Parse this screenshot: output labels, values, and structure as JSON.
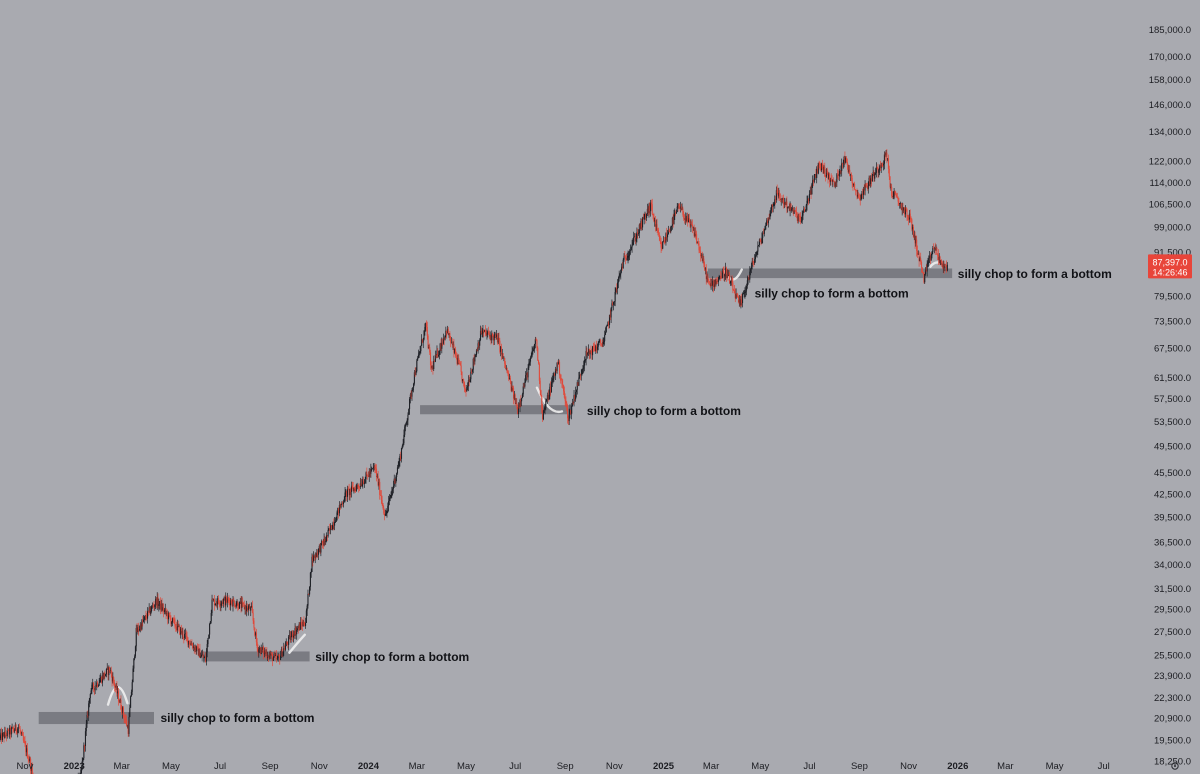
{
  "chart_data": {
    "type": "candlestick",
    "title": "",
    "xlabel": "",
    "ylabel": "",
    "y_scale": "log",
    "ylim": [
      17500,
      195000
    ],
    "x_range": [
      "2022-10-01",
      "2026-08-15"
    ],
    "grid": false,
    "colors": {
      "background": "#a9aab0",
      "up": "#1e2026",
      "down": "#e0493a",
      "zone": "#6d6e74",
      "price_tag": "#e8453a",
      "text": "#1c1d22",
      "scribble": "#f3f3f3"
    },
    "y_ticks": [
      {
        "value": 185000,
        "label": "185,000.0"
      },
      {
        "value": 170000,
        "label": "170,000.0"
      },
      {
        "value": 158000,
        "label": "158,000.0"
      },
      {
        "value": 146000,
        "label": "146,000.0"
      },
      {
        "value": 134000,
        "label": "134,000.0"
      },
      {
        "value": 122000,
        "label": "122,000.0"
      },
      {
        "value": 114000,
        "label": "114,000.0"
      },
      {
        "value": 106500,
        "label": "106,500.0"
      },
      {
        "value": 99000,
        "label": "99,000.0"
      },
      {
        "value": 91500,
        "label": "91,500.0"
      },
      {
        "value": 79500,
        "label": "79,500.0"
      },
      {
        "value": 73500,
        "label": "73,500.0"
      },
      {
        "value": 67500,
        "label": "67,500.0"
      },
      {
        "value": 61500,
        "label": "61,500.0"
      },
      {
        "value": 57500,
        "label": "57,500.0"
      },
      {
        "value": 53500,
        "label": "53,500.0"
      },
      {
        "value": 49500,
        "label": "49,500.0"
      },
      {
        "value": 45500,
        "label": "45,500.0"
      },
      {
        "value": 42500,
        "label": "42,500.0"
      },
      {
        "value": 39500,
        "label": "39,500.0"
      },
      {
        "value": 36500,
        "label": "36,500.0"
      },
      {
        "value": 34000,
        "label": "34,000.0"
      },
      {
        "value": 31500,
        "label": "31,500.0"
      },
      {
        "value": 29500,
        "label": "29,500.0"
      },
      {
        "value": 27500,
        "label": "27,500.0"
      },
      {
        "value": 25500,
        "label": "25,500.0"
      },
      {
        "value": 23900,
        "label": "23,900.0"
      },
      {
        "value": 22300,
        "label": "22,300.0"
      },
      {
        "value": 20900,
        "label": "20,900.0"
      },
      {
        "value": 19500,
        "label": "19,500.0"
      },
      {
        "value": 18250,
        "label": "18,250.0"
      }
    ],
    "x_ticks": [
      {
        "date": "2022-11-01",
        "label": "Nov",
        "bold": false
      },
      {
        "date": "2023-01-01",
        "label": "2023",
        "bold": true
      },
      {
        "date": "2023-03-01",
        "label": "Mar",
        "bold": false
      },
      {
        "date": "2023-05-01",
        "label": "May",
        "bold": false
      },
      {
        "date": "2023-07-01",
        "label": "Jul",
        "bold": false
      },
      {
        "date": "2023-09-01",
        "label": "Sep",
        "bold": false
      },
      {
        "date": "2023-11-01",
        "label": "Nov",
        "bold": false
      },
      {
        "date": "2024-01-01",
        "label": "2024",
        "bold": true
      },
      {
        "date": "2024-03-01",
        "label": "Mar",
        "bold": false
      },
      {
        "date": "2024-05-01",
        "label": "May",
        "bold": false
      },
      {
        "date": "2024-07-01",
        "label": "Jul",
        "bold": false
      },
      {
        "date": "2024-09-01",
        "label": "Sep",
        "bold": false
      },
      {
        "date": "2024-11-01",
        "label": "Nov",
        "bold": false
      },
      {
        "date": "2025-01-01",
        "label": "2025",
        "bold": true
      },
      {
        "date": "2025-03-01",
        "label": "Mar",
        "bold": false
      },
      {
        "date": "2025-05-01",
        "label": "May",
        "bold": false
      },
      {
        "date": "2025-07-01",
        "label": "Jul",
        "bold": false
      },
      {
        "date": "2025-09-01",
        "label": "Sep",
        "bold": false
      },
      {
        "date": "2025-11-01",
        "label": "Nov",
        "bold": false
      },
      {
        "date": "2026-01-01",
        "label": "2026",
        "bold": true
      },
      {
        "date": "2026-03-01",
        "label": "Mar",
        "bold": false
      },
      {
        "date": "2026-05-01",
        "label": "May",
        "bold": false
      },
      {
        "date": "2026-07-01",
        "label": "Jul",
        "bold": false
      }
    ],
    "price_marker": {
      "value": 87397,
      "price_label": "87,397.0",
      "countdown_label": "14:26:46"
    },
    "zones": [
      {
        "start": "2022-11-18",
        "end": "2023-04-10",
        "low": 20500,
        "high": 21300
      },
      {
        "start": "2023-06-08",
        "end": "2023-10-20",
        "low": 25000,
        "high": 25800
      },
      {
        "start": "2024-03-05",
        "end": "2024-09-10",
        "low": 54700,
        "high": 56300
      },
      {
        "start": "2025-02-25",
        "end": "2025-12-25",
        "low": 84200,
        "high": 86800
      }
    ],
    "annotations": [
      {
        "text": "silly chop to form a bottom",
        "date": "2023-04-18",
        "value": 20900
      },
      {
        "text": "silly chop to form a bottom",
        "date": "2023-10-27",
        "value": 25350
      },
      {
        "text": "silly chop to form a bottom",
        "date": "2024-09-28",
        "value": 55300
      },
      {
        "text": "silly chop to form a bottom",
        "date": "2026-01-01",
        "value": 85300
      },
      {
        "text": "silly chop to form a bottom",
        "date": "2025-04-24",
        "value": 80200
      }
    ],
    "price_path": [
      [
        "2022-10-01",
        19600
      ],
      [
        "2022-10-25",
        20300
      ],
      [
        "2022-11-08",
        18200
      ],
      [
        "2022-11-15",
        16500
      ],
      [
        "2022-12-15",
        16900
      ],
      [
        "2022-12-31",
        16550
      ],
      [
        "2023-01-10",
        17300
      ],
      [
        "2023-01-22",
        22800
      ],
      [
        "2023-02-15",
        24400
      ],
      [
        "2023-03-10",
        20150
      ],
      [
        "2023-03-20",
        27400
      ],
      [
        "2023-04-14",
        30300
      ],
      [
        "2023-05-01",
        28600
      ],
      [
        "2023-05-20",
        27000
      ],
      [
        "2023-06-14",
        25100
      ],
      [
        "2023-06-22",
        30200
      ],
      [
        "2023-07-14",
        30300
      ],
      [
        "2023-08-10",
        29400
      ],
      [
        "2023-08-17",
        26100
      ],
      [
        "2023-09-11",
        25100
      ],
      [
        "2023-10-01",
        27400
      ],
      [
        "2023-10-16",
        28400
      ],
      [
        "2023-10-24",
        34500
      ],
      [
        "2023-11-10",
        36800
      ],
      [
        "2023-12-05",
        42500
      ],
      [
        "2023-12-20",
        43600
      ],
      [
        "2024-01-10",
        46200
      ],
      [
        "2024-01-23",
        39500
      ],
      [
        "2024-02-10",
        47500
      ],
      [
        "2024-02-28",
        62000
      ],
      [
        "2024-03-13",
        72500
      ],
      [
        "2024-03-20",
        63000
      ],
      [
        "2024-04-08",
        71500
      ],
      [
        "2024-04-25",
        63000
      ],
      [
        "2024-05-01",
        58500
      ],
      [
        "2024-05-21",
        71000
      ],
      [
        "2024-06-10",
        69500
      ],
      [
        "2024-07-05",
        55500
      ],
      [
        "2024-07-28",
        69500
      ],
      [
        "2024-08-05",
        54500
      ],
      [
        "2024-08-24",
        64500
      ],
      [
        "2024-09-06",
        54000
      ],
      [
        "2024-09-27",
        65800
      ],
      [
        "2024-10-20",
        69000
      ],
      [
        "2024-11-12",
        88000
      ],
      [
        "2024-12-17",
        106000
      ],
      [
        "2024-12-30",
        92500
      ],
      [
        "2025-01-21",
        105500
      ],
      [
        "2025-02-10",
        97000
      ],
      [
        "2025-02-28",
        82000
      ],
      [
        "2025-03-20",
        86000
      ],
      [
        "2025-04-07",
        77000
      ],
      [
        "2025-04-21",
        87000
      ],
      [
        "2025-05-22",
        110000
      ],
      [
        "2025-06-22",
        101000
      ],
      [
        "2025-07-14",
        121000
      ],
      [
        "2025-08-02",
        113000
      ],
      [
        "2025-08-14",
        123500
      ],
      [
        "2025-09-01",
        108500
      ],
      [
        "2025-10-06",
        124500
      ],
      [
        "2025-10-11",
        111000
      ],
      [
        "2025-11-04",
        101500
      ],
      [
        "2025-11-21",
        84000
      ],
      [
        "2025-12-03",
        93000
      ],
      [
        "2025-12-16",
        86500
      ],
      [
        "2025-12-20",
        87397
      ]
    ]
  }
}
